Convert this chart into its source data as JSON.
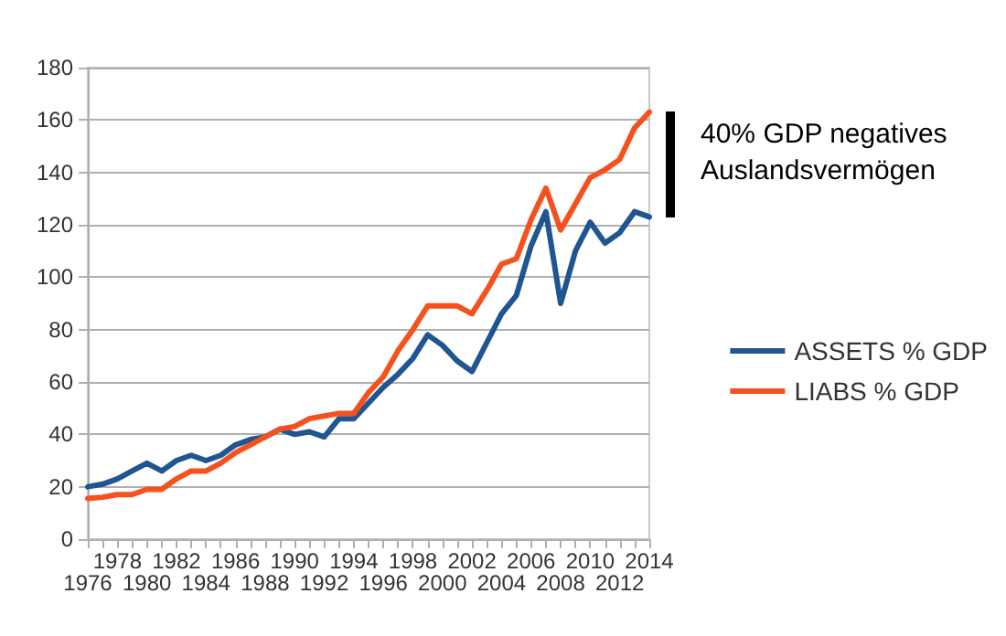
{
  "chart_data": {
    "type": "line",
    "categories": [
      "1976",
      null,
      "1978",
      null,
      "1980",
      null,
      "1982",
      null,
      "1984",
      null,
      "1986",
      null,
      "1988",
      null,
      "1990",
      null,
      "1992",
      null,
      "1994",
      null,
      "1996",
      null,
      "1998",
      null,
      "2000",
      null,
      "2002",
      null,
      "2004",
      null,
      "2006",
      null,
      "2008",
      null,
      "2010",
      null,
      "2012",
      null,
      "2014"
    ],
    "series": [
      {
        "name": "ASSETS % GDP",
        "color": "#1f5591",
        "values": [
          20,
          21,
          23,
          26,
          29,
          26,
          30,
          32,
          30,
          32,
          36,
          38,
          39,
          42,
          40,
          41,
          39,
          46,
          46,
          52,
          58,
          63,
          69,
          78,
          74,
          68,
          64,
          75,
          86,
          93,
          112,
          125,
          90,
          110,
          121,
          113,
          117,
          125,
          123
        ]
      },
      {
        "name": "LIABS % GDP",
        "color": "#f4511e",
        "values": [
          15.5,
          16,
          17,
          17,
          19,
          19,
          23,
          26,
          26,
          29,
          33,
          36,
          39,
          42,
          43,
          46,
          47,
          48,
          48,
          56,
          62,
          72,
          80,
          89,
          89,
          89,
          86,
          95,
          105,
          107,
          122,
          134,
          118,
          128,
          138,
          141,
          145,
          157,
          163
        ]
      }
    ],
    "ylim": [
      0,
      180
    ],
    "yticks": [
      0,
      20,
      40,
      60,
      80,
      100,
      120,
      140,
      160,
      180
    ],
    "grid": "y",
    "legend": "right",
    "marker": "none",
    "line_style": "solid",
    "annotations": [
      "40% GDP negatives Auslandsvermögen"
    ]
  }
}
